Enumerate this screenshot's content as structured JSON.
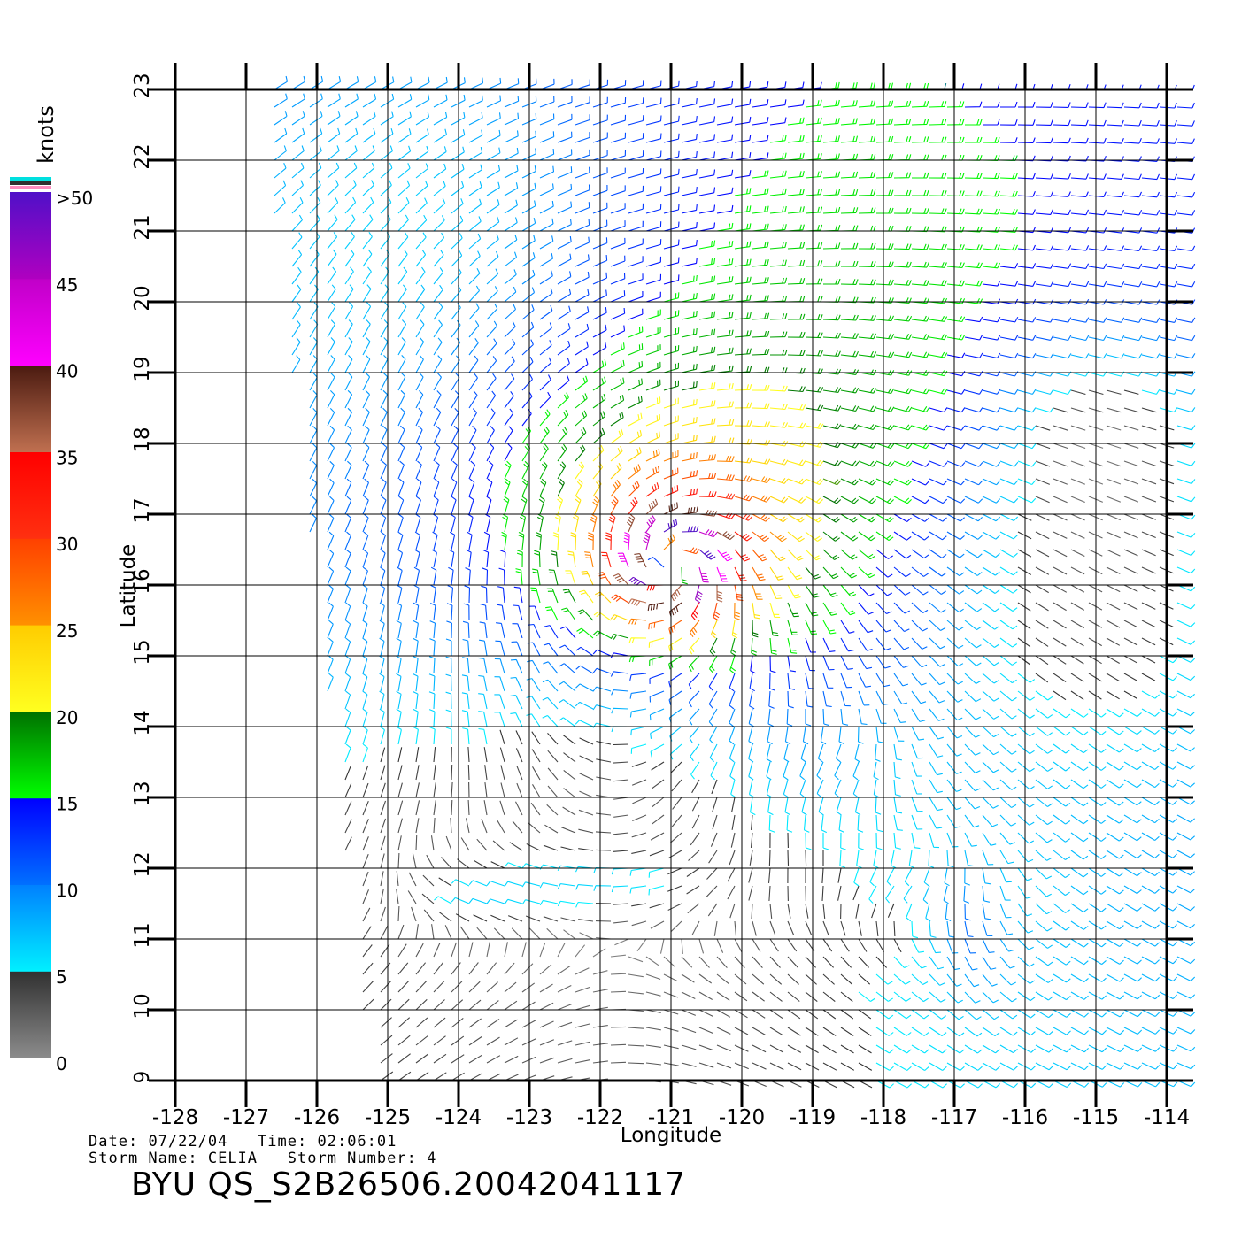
{
  "colorbar": {
    "title": "knots",
    "labels": [
      ">50",
      "45",
      "40",
      "35",
      "30",
      "25",
      "20",
      "15",
      "10",
      "5",
      "0"
    ],
    "bands": [
      {
        "from": 0,
        "to": 5,
        "top": "#303030",
        "bottom": "#8c8c8c"
      },
      {
        "from": 5,
        "to": 10,
        "top": "#0080ff",
        "bottom": "#00f0ff"
      },
      {
        "from": 10,
        "to": 15,
        "top": "#0000ff",
        "bottom": "#0070ff"
      },
      {
        "from": 15,
        "to": 20,
        "top": "#007000",
        "bottom": "#00ff00"
      },
      {
        "from": 20,
        "to": 25,
        "top": "#ffcc00",
        "bottom": "#ffff20"
      },
      {
        "from": 25,
        "to": 30,
        "top": "#ff4000",
        "bottom": "#ff9000"
      },
      {
        "from": 30,
        "to": 35,
        "top": "#ff0000",
        "bottom": "#ff3010"
      },
      {
        "from": 35,
        "to": 40,
        "top": "#4a1a10",
        "bottom": "#c07050"
      },
      {
        "from": 40,
        "to": 45,
        "top": "#c000c8",
        "bottom": "#ff00ff"
      },
      {
        "from": 45,
        "to": 50,
        "top": "#5010c8",
        "bottom": "#b000c0"
      }
    ],
    "cap_colors": [
      "#00e0e0",
      "#303030",
      "#ff8cc0"
    ]
  },
  "chart_data": {
    "type": "wind-vector-map",
    "xlabel": "Longitude",
    "ylabel": "Latitude",
    "xlim": [
      -128,
      -114
    ],
    "ylim": [
      9,
      23
    ],
    "x_ticks": [
      "-128",
      "-127",
      "-126",
      "-125",
      "-124",
      "-123",
      "-122",
      "-121",
      "-120",
      "-119",
      "-118",
      "-117",
      "-116",
      "-115",
      "-114"
    ],
    "y_ticks": [
      "9",
      "10",
      "11",
      "12",
      "13",
      "14",
      "15",
      "16",
      "17",
      "18",
      "19",
      "20",
      "21",
      "22",
      "23"
    ],
    "grid": true,
    "storm_center": {
      "lon": -121.0,
      "lat": 16.3
    },
    "color_units": "knots"
  },
  "info": {
    "date_label": "Date:",
    "date": "07/22/04",
    "time_label": "Time:",
    "time": "02:06:01",
    "storm_name_label": "Storm Name:",
    "storm_name": "CELIA",
    "storm_number_label": "Storm Number:",
    "storm_number": "4",
    "title": "BYU  QS_S2B26506.20042041117"
  }
}
